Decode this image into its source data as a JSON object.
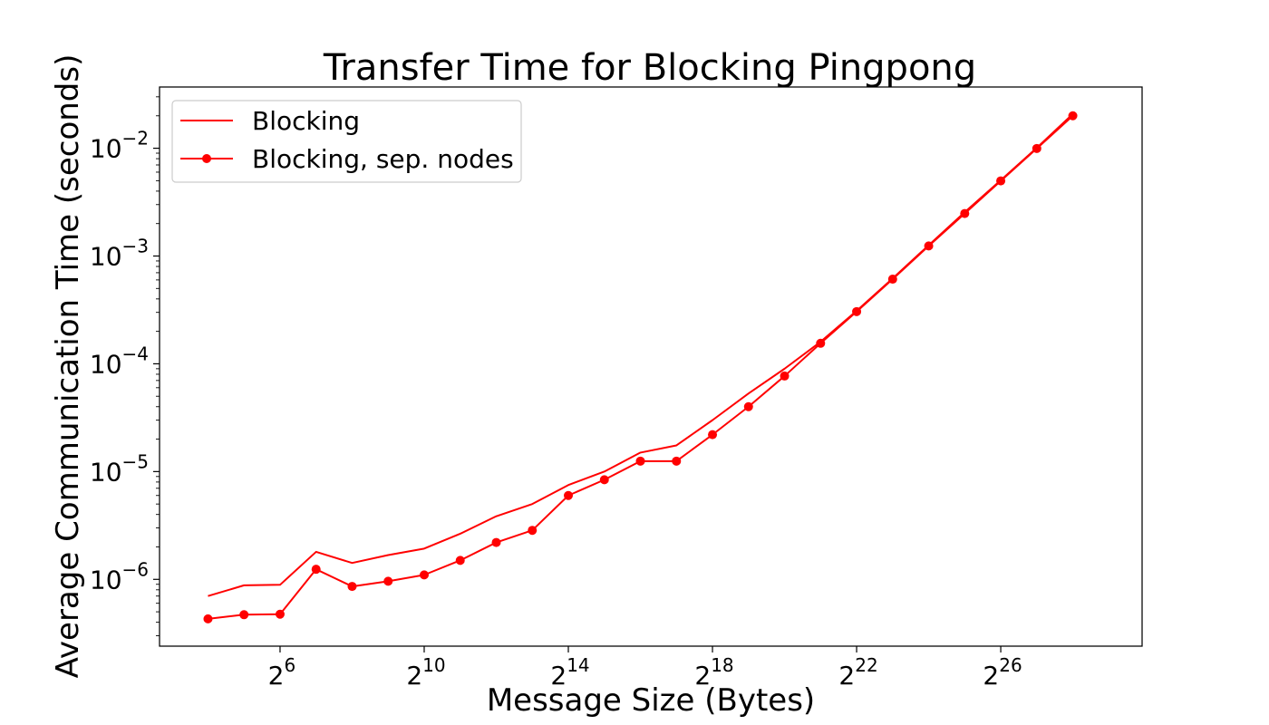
{
  "chart_data": {
    "type": "line",
    "title": "Transfer Time for Blocking Pingpong",
    "xlabel": "Message Size (Bytes)",
    "ylabel": "Average Communication Time (seconds)",
    "x_scale": "log2",
    "y_scale": "log10",
    "xlim": [
      6.3,
      1017500000
    ],
    "ylim": [
      2.4e-07,
      0.037
    ],
    "x_tick_labels": [
      {
        "base": "2",
        "exp": "6",
        "value": 64
      },
      {
        "base": "2",
        "exp": "10",
        "value": 1024
      },
      {
        "base": "2",
        "exp": "14",
        "value": 16384
      },
      {
        "base": "2",
        "exp": "18",
        "value": 262144
      },
      {
        "base": "2",
        "exp": "22",
        "value": 4194304
      },
      {
        "base": "2",
        "exp": "26",
        "value": 67108864
      }
    ],
    "y_tick_labels": [
      {
        "base": "10",
        "exp": "−6",
        "value": 1e-06
      },
      {
        "base": "10",
        "exp": "−5",
        "value": 1e-05
      },
      {
        "base": "10",
        "exp": "−4",
        "value": 0.0001
      },
      {
        "base": "10",
        "exp": "−3",
        "value": 0.001
      },
      {
        "base": "10",
        "exp": "−2",
        "value": 0.01
      }
    ],
    "x": [
      16,
      32,
      64,
      128,
      256,
      512,
      1024,
      2048,
      4096,
      8192,
      16384,
      32768,
      65536,
      131072,
      262144,
      524288,
      1048576,
      2097152,
      4194304,
      8388608,
      16777216,
      33554432,
      67108864,
      134217728,
      268435456
    ],
    "series": [
      {
        "name": "Blocking",
        "color": "#ff0000",
        "marker": "none",
        "values": [
          7e-07,
          8.8e-07,
          8.9e-07,
          1.8e-06,
          1.42e-06,
          1.68e-06,
          1.93e-06,
          2.65e-06,
          3.85e-06,
          5e-06,
          7.5e-06,
          1e-05,
          1.5e-05,
          1.75e-05,
          3e-05,
          5.3e-05,
          9e-05,
          0.00016,
          0.00031,
          0.00062,
          0.00126,
          0.00255,
          0.00505,
          0.0101,
          0.0208
        ]
      },
      {
        "name": "Blocking, sep. nodes",
        "color": "#ff0000",
        "marker": "circle",
        "values": [
          4.3e-07,
          4.7e-07,
          4.75e-07,
          1.24e-06,
          8.6e-07,
          9.6e-07,
          1.1e-06,
          1.5e-06,
          2.2e-06,
          2.85e-06,
          6e-06,
          8.4e-06,
          1.25e-05,
          1.25e-05,
          2.2e-05,
          4e-05,
          7.7e-05,
          0.000155,
          0.000305,
          0.00061,
          0.00124,
          0.00248,
          0.00498,
          0.00995,
          0.02
        ]
      }
    ],
    "legend_position": "top-left",
    "grid": false
  }
}
